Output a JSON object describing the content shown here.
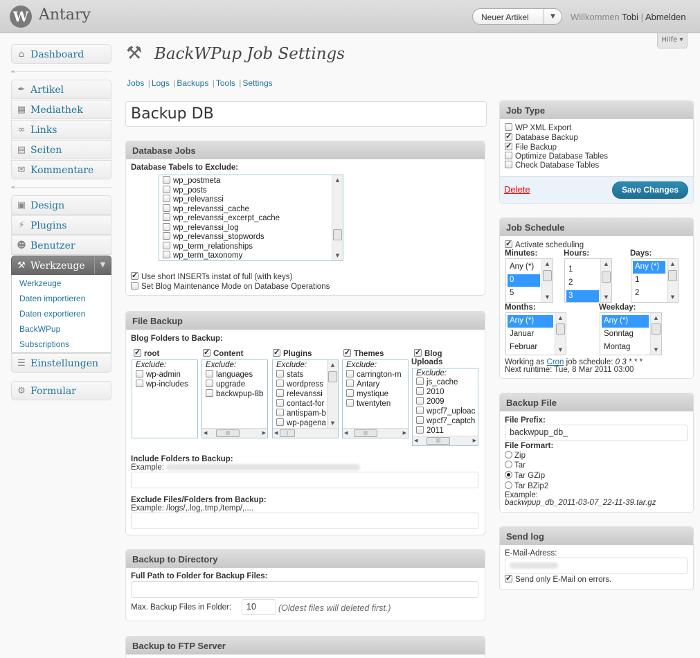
{
  "topbar": {
    "logo": "W",
    "site_name": "Antary",
    "new_button_label": "Neuer Artikel",
    "welcome_text": "Willkommen",
    "user_name": "Tobi",
    "separator": "|",
    "logout": "Abmelden",
    "help_tab": "Hilfe"
  },
  "menu": {
    "dashboard": "Dashboard",
    "artikel": "Artikel",
    "mediathek": "Mediathek",
    "links": "Links",
    "seiten": "Seiten",
    "kommentare": "Kommentare",
    "design": "Design",
    "plugins": "Plugins",
    "benutzer": "Benutzer",
    "werkzeuge": "Werkzeuge",
    "einstellungen": "Einstellungen",
    "formular": "Formular",
    "submenu": [
      "Werkzeuge",
      "Daten importieren",
      "Daten exportieren",
      "BackWPup",
      "Subscriptions"
    ]
  },
  "page": {
    "title": "BackWPup Job Settings",
    "links": [
      "Jobs",
      "Logs",
      "Backups",
      "Tools",
      "Settings"
    ],
    "link_sep": "|",
    "job_name": "Backup DB"
  },
  "db_jobs": {
    "title": "Database Jobs",
    "exclude_label": "Database Tabels to Exclude:",
    "tables": [
      "wp_postmeta",
      "wp_posts",
      "wp_relevanssi",
      "wp_relevanssi_cache",
      "wp_relevanssi_excerpt_cache",
      "wp_relevanssi_log",
      "wp_relevanssi_stopwords",
      "wp_term_relationships",
      "wp_term_taxonomy"
    ],
    "short_inserts": "Use short INSERTs instat of full (with keys)",
    "maintenance": "Set Blog Maintenance Mode on Database Operations"
  },
  "file_backup": {
    "title": "File Backup",
    "folders_label": "Blog Folders to Backup:",
    "exclude_word": "Exclude:",
    "root": {
      "label": "root",
      "items": [
        "wp-admin",
        "wp-includes"
      ]
    },
    "content": {
      "label": "Content",
      "items": [
        "languages",
        "upgrade",
        "backwpup-8b"
      ]
    },
    "plugins": {
      "label": "Plugins",
      "items": [
        "stats",
        "wordpress",
        "relevanssi",
        "contact-for",
        "antispam-b",
        "wp-pagena"
      ]
    },
    "themes": {
      "label": "Themes",
      "items": [
        "carrington-m",
        "Antary",
        "mystique",
        "twentyten"
      ]
    },
    "uploads": {
      "label1": "Blog",
      "label2": "Uploads",
      "items": [
        "js_cache",
        "2010",
        "2009",
        "wpcf7_uploac",
        "wpcf7_captch",
        "2011"
      ]
    },
    "include_label": "Include Folders to Backup:",
    "example_prefix": "Example:",
    "exclude_files_label": "Exclude Files/Folders from Backup:",
    "exclude_example": "Example: /logs/,.log,.tmp,/temp/,...."
  },
  "backup_dir": {
    "title": "Backup to Directory",
    "path_label": "Full Path to Folder for Backup Files:",
    "max_label": "Max. Backup Files in Folder:",
    "max_value": "10",
    "max_note": "(Oldest files will deleted first.)"
  },
  "ftp": {
    "title": "Backup to FTP Server"
  },
  "job_type": {
    "title": "Job Type",
    "options": [
      "WP XML Export",
      "Database Backup",
      "File Backup",
      "Optimize Database Tables",
      "Check Database Tables"
    ],
    "checked": [
      false,
      true,
      true,
      false,
      false
    ],
    "delete": "Delete",
    "save": "Save Changes"
  },
  "schedule": {
    "title": "Job Schedule",
    "activate": "Activate scheduling",
    "minutes_label": "Minutes:",
    "hours_label": "Hours:",
    "days_label": "Days:",
    "months_label": "Months:",
    "weekday_label": "Weekday:",
    "minutes": [
      "Any (*)",
      "0",
      "5"
    ],
    "hours": [
      "1",
      "2",
      "3"
    ],
    "days": [
      "Any (*)",
      "1",
      "2"
    ],
    "months": [
      "Any (*)",
      "Januar",
      "Februar"
    ],
    "weekdays": [
      "Any (*)",
      "Sonntag",
      "Montag"
    ],
    "working_prefix": "Working as",
    "cron_link": "Cron",
    "working_suffix": "job schedule:",
    "cron_expr": "0 3 * * *",
    "next_runtime": "Next runtime: Tue, 8 Mar 2011 03:00"
  },
  "backup_file": {
    "title": "Backup File",
    "prefix_label": "File Prefix:",
    "prefix_value": "backwpup_db_",
    "format_label": "File Formart:",
    "formats": [
      "Zip",
      "Tar",
      "Tar GZip",
      "Tar BZip2"
    ],
    "selected_format": "Tar GZip",
    "example_label": "Example:",
    "example_value": "backwpup_db_2011-03-07_22-11-39.tar.gz"
  },
  "send_log": {
    "title": "Send log",
    "email_label": "E-Mail-Adress:",
    "errors_only": "Send only E-Mail on errors."
  }
}
